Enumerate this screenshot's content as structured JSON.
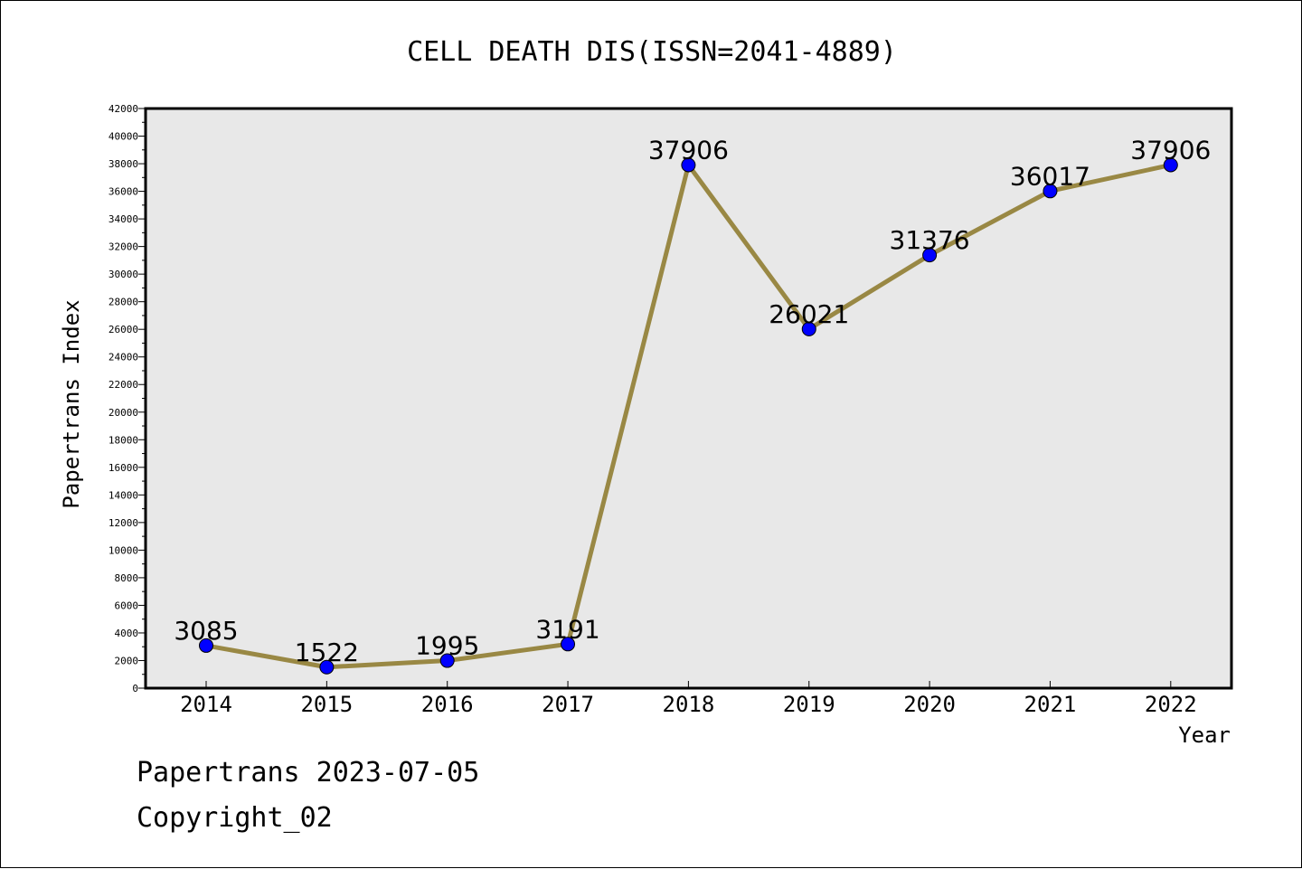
{
  "chart_data": {
    "type": "line",
    "title": "CELL DEATH DIS(ISSN=2041-4889)",
    "xlabel": "Year",
    "ylabel": "Papertrans Index",
    "categories": [
      "2014",
      "2015",
      "2016",
      "2017",
      "2018",
      "2019",
      "2020",
      "2021",
      "2022"
    ],
    "series": [
      {
        "values": [
          3085,
          1522,
          1995,
          3191,
          37906,
          26021,
          31376,
          36017,
          37906
        ]
      }
    ],
    "data_labels": [
      "3085",
      "1522",
      "1995",
      "3191",
      "37906",
      "26021",
      "31376",
      "36017",
      "37906"
    ],
    "ylim": [
      0,
      42000
    ],
    "y_ticks": [
      "0",
      "2000",
      "4000",
      "6000",
      "8000",
      "10000",
      "12000",
      "14000",
      "16000",
      "18000",
      "20000",
      "22000",
      "24000",
      "26000",
      "28000",
      "30000",
      "32000",
      "34000",
      "36000",
      "38000",
      "40000",
      "42000"
    ],
    "grid": false,
    "legend": "none",
    "colors": {
      "line": "#998844",
      "marker": "#0000ff",
      "plot_background": "#e8e8e8"
    }
  },
  "footer": {
    "line1": "Papertrans 2023-07-05",
    "line2": "Copyright_02"
  }
}
